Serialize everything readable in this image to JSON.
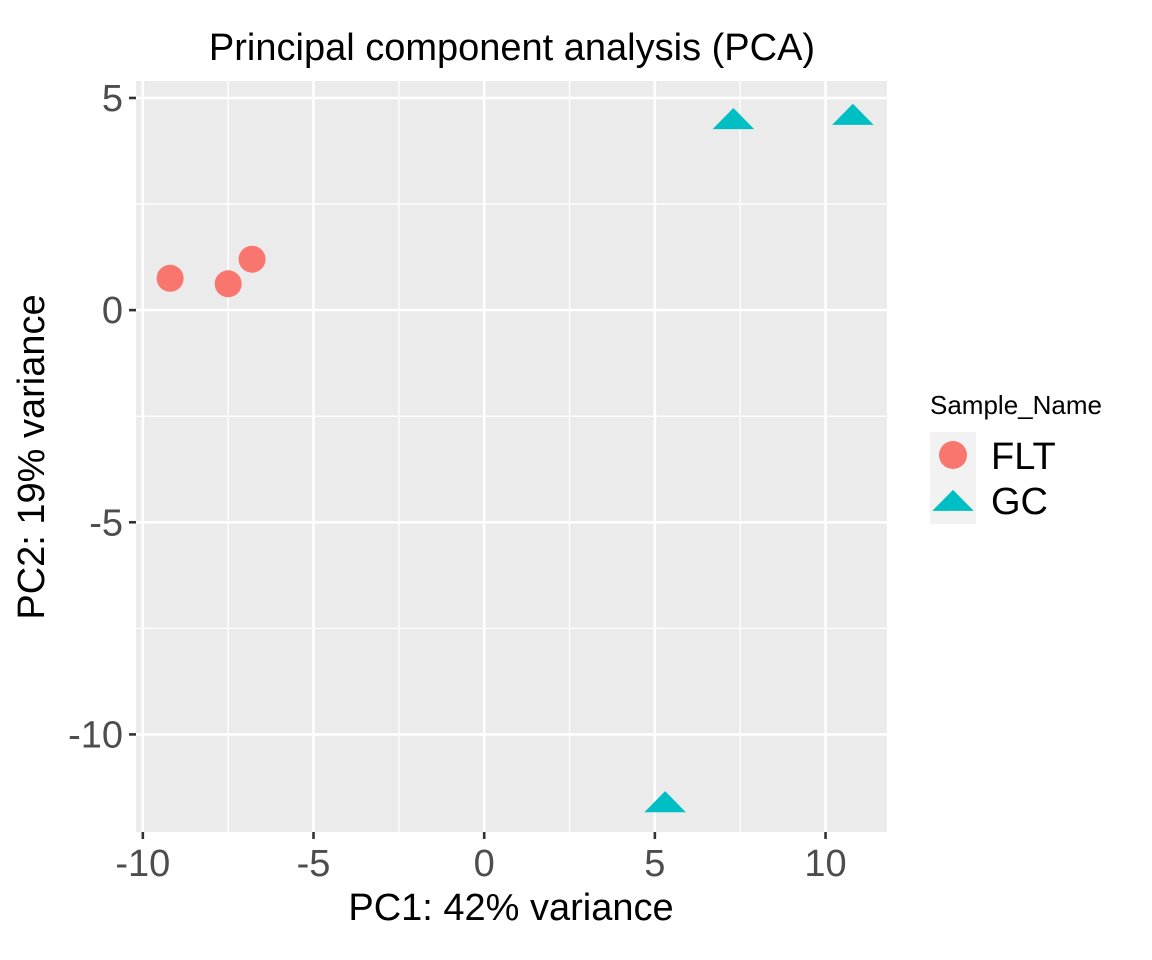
{
  "chart_data": {
    "type": "scatter",
    "title": "Principal component analysis (PCA)",
    "xlabel": "PC1: 42% variance",
    "ylabel": "PC2: 19% variance",
    "xlim": [
      -10.2,
      11.8
    ],
    "ylim": [
      -12.3,
      5.4
    ],
    "x_ticks": [
      -10,
      -5,
      0,
      5,
      10
    ],
    "x_tick_labels": [
      "-10",
      "-5",
      "0",
      "5",
      "10"
    ],
    "y_ticks": [
      -10,
      -5,
      0,
      5
    ],
    "y_tick_labels": [
      "-10",
      "-5",
      "0",
      "5"
    ],
    "grid": true,
    "legend": {
      "title": "Sample_Name",
      "position": "right"
    },
    "series": [
      {
        "name": "FLT",
        "shape": "circle",
        "color": "#F8766D",
        "points": [
          {
            "x": -9.2,
            "y": 0.75
          },
          {
            "x": -7.5,
            "y": 0.62
          },
          {
            "x": -6.8,
            "y": 1.2
          }
        ]
      },
      {
        "name": "GC",
        "shape": "triangle",
        "color": "#00BFC4",
        "points": [
          {
            "x": 7.3,
            "y": 4.5
          },
          {
            "x": 10.8,
            "y": 4.6
          },
          {
            "x": 5.3,
            "y": -11.6
          }
        ]
      }
    ]
  }
}
